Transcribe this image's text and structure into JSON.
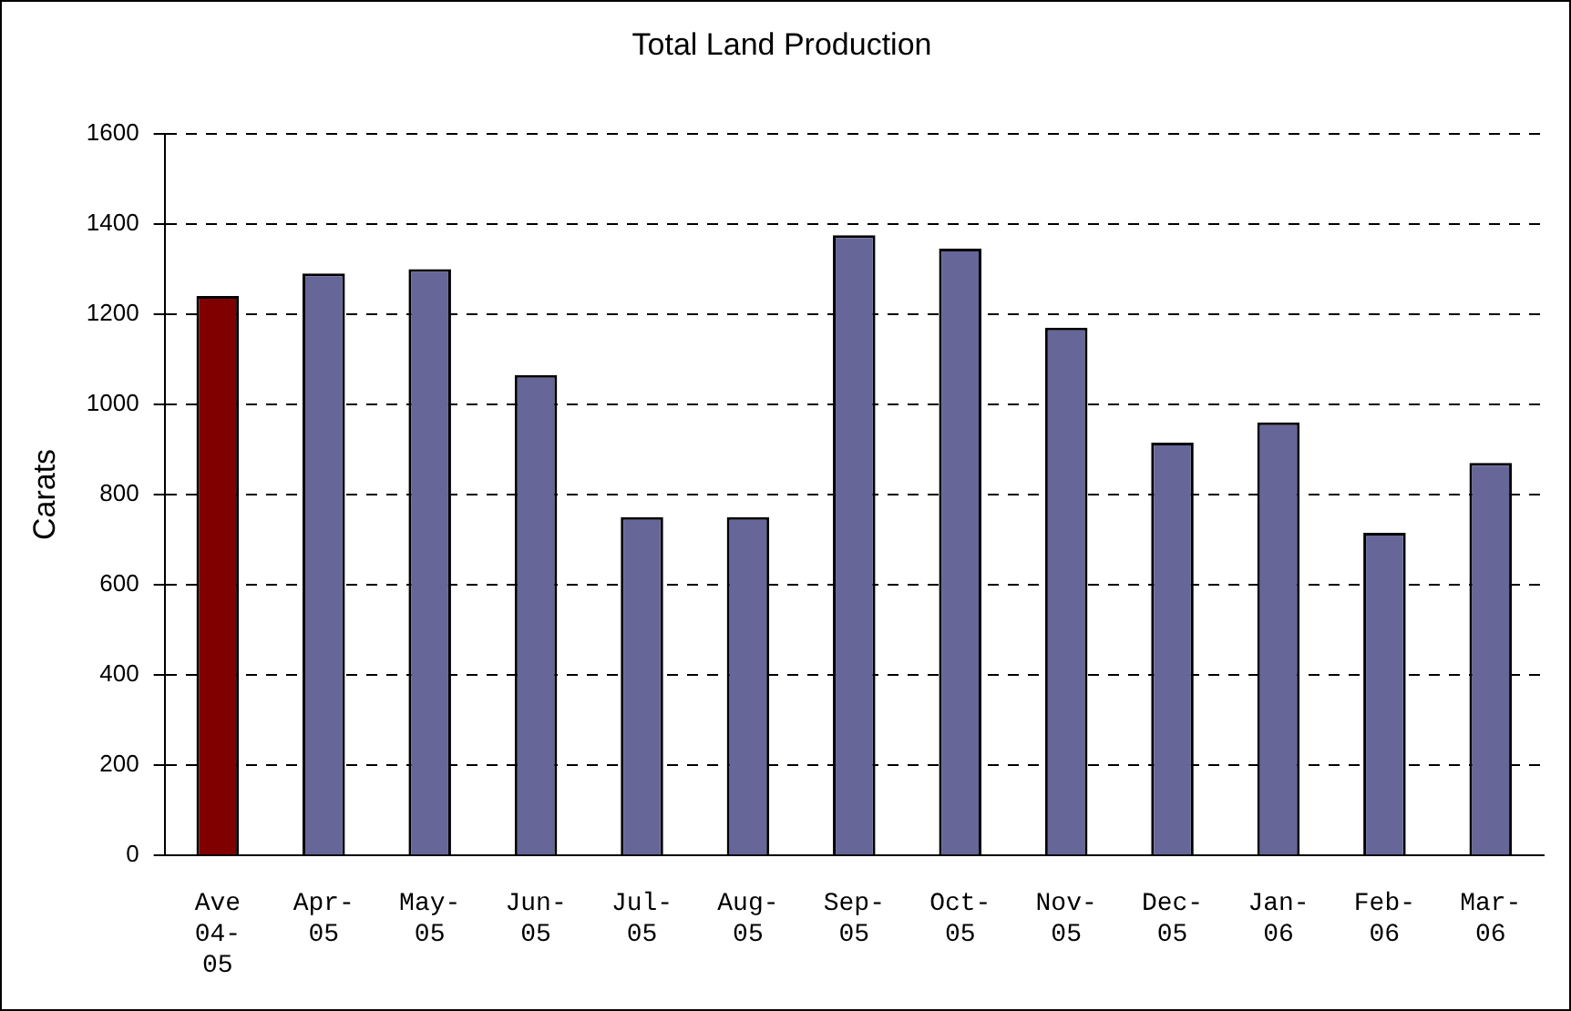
{
  "chart_data": {
    "type": "bar",
    "title": "Total Land Production",
    "ylabel": "Carats",
    "categories": [
      "Ave 04-05",
      "Apr-05",
      "May-05",
      "Jun-05",
      "Jul-05",
      "Aug-05",
      "Sep-05",
      "Oct-05",
      "Nov-05",
      "Dec-05",
      "Jan-06",
      "Feb-06",
      "Mar-06"
    ],
    "values": [
      1240,
      1290,
      1300,
      1065,
      750,
      750,
      1375,
      1345,
      1170,
      915,
      960,
      715,
      870
    ],
    "colors": [
      "#800000",
      "#666699",
      "#666699",
      "#666699",
      "#666699",
      "#666699",
      "#666699",
      "#666699",
      "#666699",
      "#666699",
      "#666699",
      "#666699",
      "#666699"
    ],
    "ylim": [
      0,
      1600
    ],
    "yticks": [
      0,
      200,
      400,
      600,
      800,
      1000,
      1200,
      1400,
      1600
    ],
    "grid": "y",
    "legend": false
  }
}
